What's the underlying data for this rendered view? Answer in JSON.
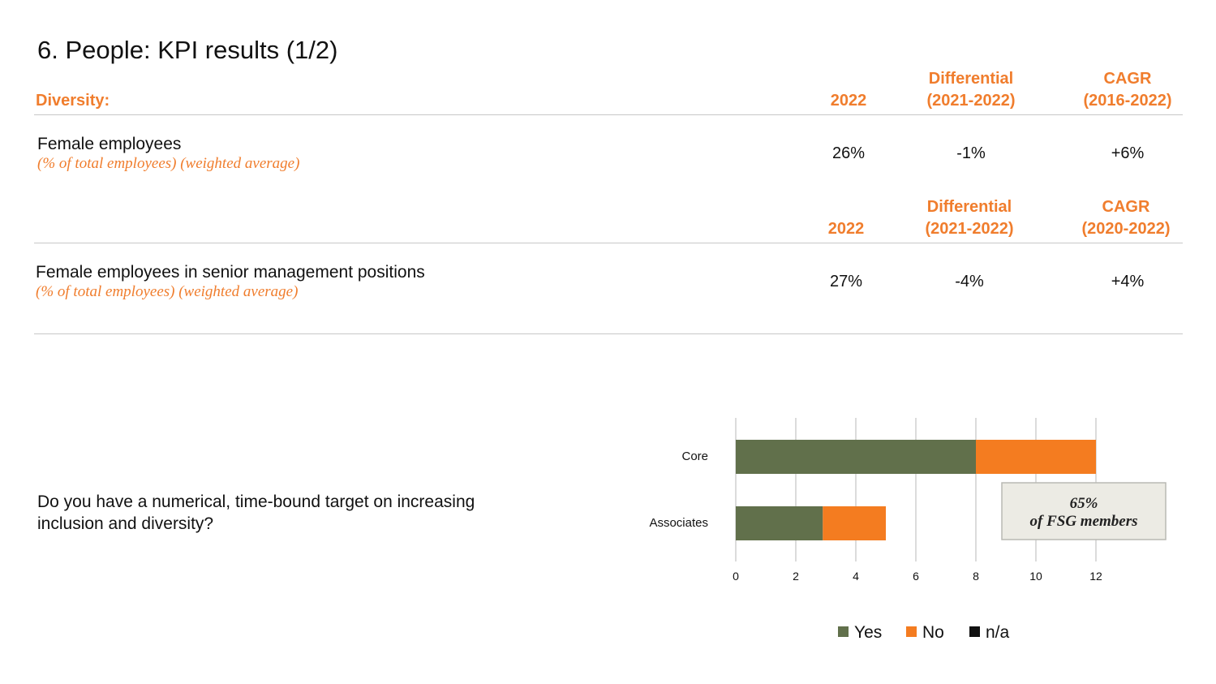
{
  "title": "6. People: KPI results (1/2)",
  "table1": {
    "section_label": "Diversity:",
    "headers": {
      "year": "2022",
      "diff_line1": "Differential",
      "diff_line2": "(2021-2022)",
      "cagr_line1": "CAGR",
      "cagr_line2": "(2016-2022)"
    },
    "row": {
      "label": "Female employees",
      "sublabel": "(% of total employees) (weighted average)",
      "value_2022": "26%",
      "differential": "-1%",
      "cagr": "+6%"
    }
  },
  "table2": {
    "headers": {
      "year": "2022",
      "diff_line1": "Differential",
      "diff_line2": "(2021-2022)",
      "cagr_line1": "CAGR",
      "cagr_line2": "(2020-2022)"
    },
    "row": {
      "label": "Female employees in senior management positions",
      "sublabel": "(% of total employees) (weighted average)",
      "value_2022": "27%",
      "differential": "-4%",
      "cagr": "+4%"
    }
  },
  "question": "Do you have a numerical, time-bound target on increasing inclusion and diversity?",
  "callout": {
    "line1": "65%",
    "line2": "of FSG members"
  },
  "colors": {
    "accent": "#f07d2d",
    "yes": "#61704b",
    "no": "#f47c20",
    "na": "#111111",
    "grid": "#c8c8c8",
    "callout_bg": "#ecebe4"
  },
  "chart_data": {
    "type": "bar",
    "orientation": "horizontal",
    "stacked": true,
    "categories": [
      "Core",
      "Associates"
    ],
    "series": [
      {
        "name": "Yes",
        "values": [
          8,
          2.9
        ]
      },
      {
        "name": "No",
        "values": [
          4,
          2.1
        ]
      },
      {
        "name": "n/a",
        "values": [
          0,
          0
        ]
      }
    ],
    "xticks": [
      "0",
      "2",
      "4",
      "6",
      "8",
      "10",
      "12"
    ],
    "xlim": [
      0,
      12
    ],
    "grid": true,
    "legend_position": "bottom"
  }
}
